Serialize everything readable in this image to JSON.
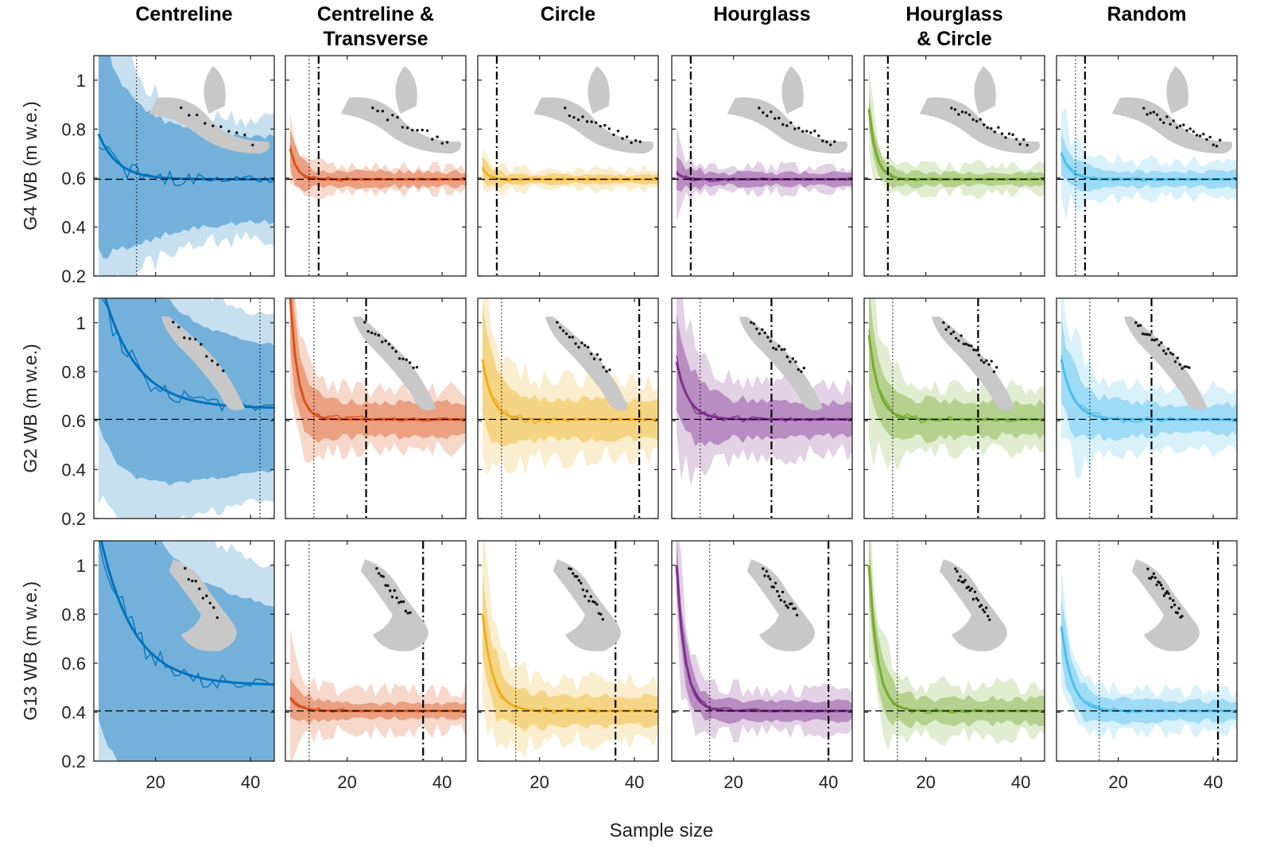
{
  "chart_data": {
    "type": "line",
    "xlabel": "Sample size",
    "ylim": [
      0.2,
      1.1
    ],
    "xlim": [
      7,
      45
    ],
    "yticks": [
      0.2,
      0.4,
      0.6,
      0.8,
      1
    ],
    "ytick_labels": [
      "0.2",
      "0.4",
      "0.6",
      "0.8",
      "1"
    ],
    "xticks": [
      20,
      40
    ],
    "xtick_labels": [
      "20",
      "40"
    ],
    "grid": false,
    "colors": {
      "Centreline": "#0072bd",
      "Centreline & Transverse": "#d95319",
      "Circle": "#edb120",
      "Hourglass": "#7e2f8e",
      "Hourglass & Circle": "#77ac30",
      "Random": "#4dbeee"
    },
    "columns": [
      {
        "title_lines": [
          "Centreline"
        ],
        "color": "#0072bd"
      },
      {
        "title_lines": [
          "Centreline &",
          "Transverse"
        ],
        "color": "#d95319"
      },
      {
        "title_lines": [
          "Circle"
        ],
        "color": "#edb120"
      },
      {
        "title_lines": [
          "Hourglass"
        ],
        "color": "#7e2f8e"
      },
      {
        "title_lines": [
          "Hourglass",
          "& Circle"
        ],
        "color": "#77ac30"
      },
      {
        "title_lines": [
          "Random"
        ],
        "color": "#4dbeee"
      }
    ],
    "rows": [
      {
        "ylabel": "G4 WB (m w.e.)",
        "reference": 0.595,
        "panels": [
          {
            "start": 0.78,
            "decay": 4,
            "inner": 0.17,
            "outer": 0.23,
            "ninner": 0.06,
            "nouter": 0.14,
            "dotted": 16,
            "dashdot": null
          },
          {
            "start": 0.72,
            "decay": 1.4,
            "inner": 0.03,
            "outer": 0.05,
            "ninner": 0.35,
            "nouter": 0.5,
            "dotted": 12,
            "dashdot": 14
          },
          {
            "start": 0.64,
            "decay": 1.2,
            "inner": 0.018,
            "outer": 0.04,
            "ninner": 0.4,
            "nouter": 0.5,
            "dotted": null,
            "dashdot": 11
          },
          {
            "start": 0.62,
            "decay": 1.5,
            "inner": 0.025,
            "outer": 0.05,
            "ninner": 0.4,
            "nouter": 0.5,
            "dotted": null,
            "dashdot": 11
          },
          {
            "start": 0.88,
            "decay": 1.5,
            "inner": 0.025,
            "outer": 0.055,
            "ninner": 0.4,
            "nouter": 0.5,
            "dotted": null,
            "dashdot": 12
          },
          {
            "start": 0.7,
            "decay": 2,
            "inner": 0.03,
            "outer": 0.07,
            "ninner": 0.3,
            "nouter": 0.4,
            "dotted": 11,
            "dashdot": 13
          }
        ]
      },
      {
        "ylabel": "G2 WB (m w.e.)",
        "reference": 0.605,
        "panels": [
          {
            "start": 1.2,
            "decay": 7,
            "inner": 0.22,
            "outer": 0.32,
            "ninner": 0.03,
            "nouter": 0.05,
            "dotted": 42,
            "dashdot": null,
            "end": 0.65
          },
          {
            "start": 1.1,
            "decay": 1.6,
            "inner": 0.07,
            "outer": 0.12,
            "ninner": 0.2,
            "nouter": 0.3,
            "dotted": 13,
            "dashdot": 24
          },
          {
            "start": 0.85,
            "decay": 2,
            "inner": 0.08,
            "outer": 0.15,
            "ninner": 0.2,
            "nouter": 0.3,
            "dotted": 12,
            "dashdot": 41
          },
          {
            "start": 0.84,
            "decay": 2.5,
            "inner": 0.07,
            "outer": 0.14,
            "ninner": 0.25,
            "nouter": 0.3,
            "dotted": 13,
            "dashdot": 28
          },
          {
            "start": 0.95,
            "decay": 2,
            "inner": 0.07,
            "outer": 0.13,
            "ninner": 0.25,
            "nouter": 0.3,
            "dotted": 13,
            "dashdot": 31
          },
          {
            "start": 0.85,
            "decay": 2.5,
            "inner": 0.06,
            "outer": 0.12,
            "ninner": 0.25,
            "nouter": 0.3,
            "dotted": 14,
            "dashdot": 27
          }
        ]
      },
      {
        "ylabel": "G13 WB (m w.e.)",
        "reference": 0.405,
        "panels": [
          {
            "start": 1.15,
            "decay": 7,
            "inner": 0.28,
            "outer": 0.42,
            "ninner": 0.03,
            "nouter": 0.05,
            "dotted": null,
            "dashdot": null,
            "end": 0.51
          },
          {
            "start": 0.46,
            "decay": 2,
            "inner": 0.03,
            "outer": 0.08,
            "ninner": 0.3,
            "nouter": 0.4,
            "dotted": 12,
            "dashdot": 36
          },
          {
            "start": 0.8,
            "decay": 2.2,
            "inner": 0.06,
            "outer": 0.12,
            "ninner": 0.25,
            "nouter": 0.35,
            "dotted": 15,
            "dashdot": 36
          },
          {
            "start": 1.0,
            "decay": 1.8,
            "inner": 0.04,
            "outer": 0.09,
            "ninner": 0.3,
            "nouter": 0.4,
            "dotted": 15,
            "dashdot": 40
          },
          {
            "start": 1.0,
            "decay": 1.8,
            "inner": 0.05,
            "outer": 0.1,
            "ninner": 0.3,
            "nouter": 0.4,
            "dotted": 14,
            "dashdot": null
          },
          {
            "start": 0.75,
            "decay": 2.2,
            "inner": 0.04,
            "outer": 0.08,
            "ninner": 0.3,
            "nouter": 0.4,
            "dotted": 16,
            "dashdot": 41
          }
        ]
      }
    ]
  }
}
